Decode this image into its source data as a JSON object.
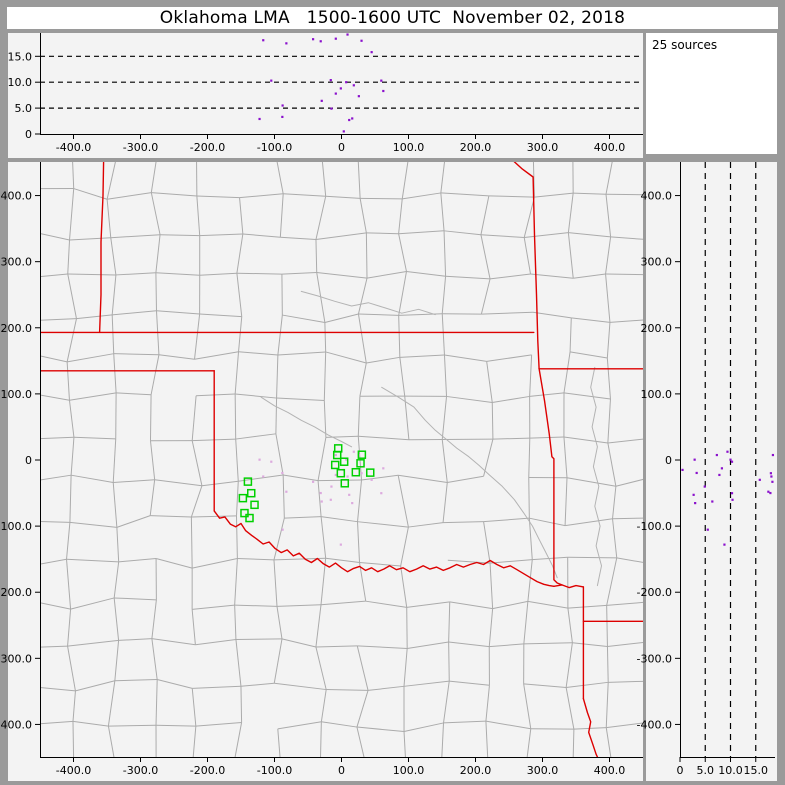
{
  "window": {
    "title": "Oklahoma LMA   1500-1600 UTC  November 02, 2018"
  },
  "status": {
    "sources_count_label": "25 sources"
  },
  "colors": {
    "frame_gray": "#9a9a9a",
    "panel_bg": "#f3f3f3",
    "title_bg": "#ffffff",
    "axis_black": "#000000",
    "county_line": "#ababab",
    "river_line": "#b3b3b3",
    "state_border_red": "#dd0000",
    "station_green": "#00d000",
    "source_dot_purple": "#8a10cc",
    "map_source_dot_pink": "#dcaade"
  },
  "chart_data": {
    "type": "scatter",
    "title": "Oklahoma LMA   1500-1600 UTC  November 02, 2018",
    "annotation": "25 sources",
    "axis_ticks": {
      "ew": [
        [
          -400,
          "-400.0"
        ],
        [
          -300,
          "-300.0"
        ],
        [
          -200,
          "-200.0"
        ],
        [
          -100,
          "-100.0"
        ],
        [
          0,
          "0"
        ],
        [
          100,
          "100.0"
        ],
        [
          200,
          "200.0"
        ],
        [
          300,
          "300.0"
        ],
        [
          400,
          "400.0"
        ]
      ],
      "ns": [
        [
          400,
          "400.0"
        ],
        [
          300,
          "300.0"
        ],
        [
          200,
          "200.0"
        ],
        [
          100,
          "100.0"
        ],
        [
          0,
          "0"
        ],
        [
          -100,
          "-100.0"
        ],
        [
          -200,
          "-200.0"
        ],
        [
          -300,
          "-300.0"
        ],
        [
          -400,
          "-400.0"
        ]
      ],
      "alt": [
        [
          0,
          "0"
        ],
        [
          5,
          "5.0"
        ],
        [
          10,
          "10.0"
        ],
        [
          15,
          "15.0"
        ]
      ]
    },
    "panels": [
      {
        "id": "alt-vs-ew",
        "position": "top",
        "x_var": "ew_km",
        "y_var": "alt_km",
        "xlim": [
          -450,
          450
        ],
        "ylim": [
          0,
          19.5
        ],
        "xticks": "ew",
        "yticks": "alt",
        "grid_dashed_y": [
          5,
          10,
          15
        ],
        "grid": "dashed"
      },
      {
        "id": "plan-view",
        "position": "main",
        "x_var": "ew_km",
        "y_var": "ns_km",
        "xlim": [
          -450,
          450
        ],
        "ylim": [
          -450,
          450
        ],
        "xticks": "ew",
        "yticks": "ns",
        "grid": "none"
      },
      {
        "id": "alt-vs-ns",
        "position": "right",
        "x_var": "alt_km",
        "y_var": "ns_km",
        "xlim": [
          0,
          18.8
        ],
        "ylim": [
          -450,
          450
        ],
        "xticks": "alt",
        "yticks": "ns",
        "grid_dashed_x": [
          5,
          10,
          15
        ],
        "grid": "dashed"
      }
    ],
    "sources_km": [
      [
        -116.8,
        -25.0,
        18.1
      ],
      [
        -82.3,
        -48.0,
        17.5
      ],
      [
        -42.4,
        -33.0,
        18.3
      ],
      [
        -31.0,
        -50.0,
        17.9
      ],
      [
        -8.5,
        7.5,
        18.4
      ],
      [
        9.0,
        -25.0,
        19.2
      ],
      [
        29.9,
        -20.0,
        18.0
      ],
      [
        45.0,
        -30.0,
        15.8
      ],
      [
        -104.8,
        -2.6,
        10.3
      ],
      [
        -16.0,
        -60.2,
        10.4
      ],
      [
        7.0,
        0.5,
        10.0
      ],
      [
        18.4,
        12.5,
        9.4
      ],
      [
        59.4,
        -50.2,
        10.3
      ],
      [
        62.4,
        -12.6,
        8.3
      ],
      [
        -8.5,
        -22.6,
        7.8
      ],
      [
        -1.0,
        -128.0,
        8.8
      ],
      [
        25.9,
        7.5,
        7.3
      ],
      [
        -29.5,
        -62.8,
        6.4
      ],
      [
        -15.0,
        -40.2,
        4.9
      ],
      [
        -87.9,
        -105.4,
        5.5
      ],
      [
        -88.3,
        -19.6,
        3.3
      ],
      [
        -122.3,
        0.5,
        2.9
      ],
      [
        11.5,
        -52.7,
        2.7
      ],
      [
        16.0,
        -65.2,
        3.0
      ],
      [
        3.4,
        -15.0,
        0.5
      ]
    ],
    "stations_km": [
      [
        -139.7,
        -32.7
      ],
      [
        -134.7,
        -50.2
      ],
      [
        -147.2,
        -57.7
      ],
      [
        -129.8,
        -67.8
      ],
      [
        -144.8,
        -80.3
      ],
      [
        -137.3,
        -87.8
      ],
      [
        -4.9,
        17.6
      ],
      [
        -6.4,
        7.5
      ],
      [
        -9.4,
        -7.5
      ],
      [
        4.0,
        -2.6
      ],
      [
        -1.0,
        -20.0
      ],
      [
        4.9,
        -35.2
      ],
      [
        30.4,
        8.0
      ],
      [
        28.4,
        -5.0
      ],
      [
        21.4,
        -18.5
      ],
      [
        42.9,
        -19.1
      ]
    ],
    "state_borders_km": [
      {
        "name": "kansas-oklahoma-37N",
        "points": [
          [
            -452,
            193
          ],
          [
            287,
            193
          ]
        ]
      },
      {
        "name": "colorado-kansas",
        "points": [
          [
            -355,
            452
          ],
          [
            -356,
            400
          ],
          [
            -359,
            330
          ],
          [
            -359,
            250
          ],
          [
            -361,
            193
          ]
        ]
      },
      {
        "name": "36-5N-west",
        "points": [
          [
            -452,
            135
          ],
          [
            -190,
            135
          ]
        ]
      },
      {
        "name": "texas-panhandle-east-100W",
        "points": [
          [
            -190,
            135
          ],
          [
            -190,
            -77
          ]
        ]
      },
      {
        "name": "red-river-ok-tx",
        "points": [
          [
            -190,
            -77
          ],
          [
            -182,
            -88
          ],
          [
            -174,
            -86
          ],
          [
            -166,
            -97
          ],
          [
            -158,
            -101
          ],
          [
            -150,
            -96
          ],
          [
            -143,
            -107
          ],
          [
            -134,
            -114
          ],
          [
            -126,
            -120
          ],
          [
            -117,
            -127
          ],
          [
            -108,
            -124
          ],
          [
            -99,
            -134
          ],
          [
            -90,
            -140
          ],
          [
            -81,
            -136
          ],
          [
            -72,
            -145
          ],
          [
            -63,
            -141
          ],
          [
            -54,
            -150
          ],
          [
            -45,
            -155
          ],
          [
            -36,
            -149
          ],
          [
            -27,
            -157
          ],
          [
            -18,
            -162
          ],
          [
            -9,
            -156
          ],
          [
            0,
            -163
          ],
          [
            9,
            -169
          ],
          [
            18,
            -164
          ],
          [
            27,
            -161
          ],
          [
            36,
            -167
          ],
          [
            45,
            -163
          ],
          [
            54,
            -169
          ],
          [
            63,
            -165
          ],
          [
            72,
            -160
          ],
          [
            82,
            -166
          ],
          [
            92,
            -163
          ],
          [
            102,
            -169
          ],
          [
            112,
            -165
          ],
          [
            122,
            -160
          ],
          [
            132,
            -165
          ],
          [
            142,
            -162
          ],
          [
            152,
            -167
          ],
          [
            162,
            -163
          ],
          [
            172,
            -158
          ],
          [
            182,
            -162
          ],
          [
            192,
            -158
          ],
          [
            202,
            -155
          ],
          [
            212,
            -158
          ],
          [
            222,
            -152
          ],
          [
            232,
            -158
          ],
          [
            242,
            -163
          ],
          [
            252,
            -160
          ],
          [
            262,
            -166
          ],
          [
            272,
            -172
          ],
          [
            282,
            -178
          ],
          [
            292,
            -184
          ],
          [
            302,
            -188
          ],
          [
            310,
            -190
          ],
          [
            317,
            -191
          ]
        ]
      },
      {
        "name": "kansas-missouri",
        "points": [
          [
            257,
            452
          ],
          [
            270,
            440
          ],
          [
            286,
            428
          ],
          [
            288,
            340
          ],
          [
            291,
            250
          ],
          [
            293,
            180
          ],
          [
            295,
            138
          ]
        ]
      },
      {
        "name": "36-5N-east-mo-ar",
        "points": [
          [
            295,
            138
          ],
          [
            452,
            138
          ]
        ]
      },
      {
        "name": "oklahoma-arkansas",
        "points": [
          [
            295,
            138
          ],
          [
            303,
            90
          ],
          [
            310,
            40
          ],
          [
            314,
            5
          ],
          [
            317,
            2
          ],
          [
            317,
            -90
          ],
          [
            317,
            -181
          ],
          [
            322,
            -186
          ],
          [
            329,
            -189
          ]
        ]
      },
      {
        "name": "river-to-tx-ar-corner",
        "points": [
          [
            317,
            -191
          ],
          [
            329,
            -189
          ],
          [
            340,
            -193
          ],
          [
            350,
            -190
          ],
          [
            361,
            -192
          ]
        ]
      },
      {
        "name": "texas-arkansas-vertical",
        "points": [
          [
            361,
            -192
          ],
          [
            361,
            -280
          ],
          [
            361,
            -361
          ]
        ]
      },
      {
        "name": "texas-arkansas-33N",
        "points": [
          [
            361,
            -244
          ],
          [
            452,
            -244
          ]
        ]
      },
      {
        "name": "red-river-south",
        "points": [
          [
            361,
            -361
          ],
          [
            367,
            -382
          ],
          [
            372,
            -396
          ],
          [
            369,
            -412
          ],
          [
            375,
            -430
          ],
          [
            380,
            -445
          ],
          [
            385,
            -456
          ]
        ]
      }
    ],
    "rivers_km": [
      {
        "name": "arkansas-river",
        "points": [
          [
            60,
            110
          ],
          [
            85,
            95
          ],
          [
            108,
            80
          ],
          [
            125,
            60
          ],
          [
            140,
            45
          ],
          [
            158,
            30
          ],
          [
            172,
            18
          ],
          [
            190,
            5
          ],
          [
            205,
            -8
          ],
          [
            220,
            -22
          ],
          [
            240,
            -40
          ],
          [
            258,
            -60
          ],
          [
            272,
            -80
          ],
          [
            285,
            -100
          ],
          [
            295,
            -120
          ],
          [
            305,
            -140
          ],
          [
            315,
            -160
          ],
          [
            322,
            -178
          ]
        ]
      },
      {
        "name": "eastern-river",
        "points": [
          [
            378,
            140
          ],
          [
            372,
            110
          ],
          [
            380,
            80
          ],
          [
            374,
            50
          ],
          [
            382,
            20
          ],
          [
            376,
            -10
          ],
          [
            384,
            -40
          ],
          [
            378,
            -70
          ],
          [
            386,
            -100
          ],
          [
            380,
            -130
          ],
          [
            388,
            -160
          ],
          [
            382,
            -190
          ]
        ]
      },
      {
        "name": "kansas-river",
        "points": [
          [
            -60,
            255
          ],
          [
            -35,
            248
          ],
          [
            -10,
            240
          ],
          [
            15,
            233
          ],
          [
            40,
            238
          ],
          [
            65,
            230
          ],
          [
            90,
            222
          ],
          [
            115,
            228
          ],
          [
            140,
            220
          ]
        ]
      },
      {
        "name": "cimarron-river",
        "points": [
          [
            -120,
            95
          ],
          [
            -100,
            82
          ],
          [
            -80,
            72
          ],
          [
            -60,
            60
          ],
          [
            -40,
            50
          ],
          [
            -20,
            38
          ],
          [
            0,
            28
          ],
          [
            15,
            20
          ]
        ]
      }
    ],
    "county_grid": {
      "extent_km": 465,
      "cell_km": 62,
      "jitter_km": 9,
      "seed": 7,
      "skip_fraction_h": 0.12,
      "skip_fraction_v": 0.08
    }
  }
}
